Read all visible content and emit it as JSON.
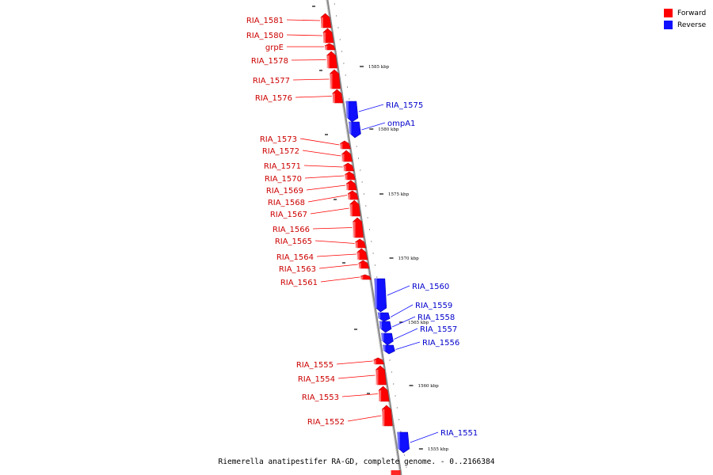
{
  "legend": {
    "forward": {
      "label": "Forward",
      "color": "#ff0000"
    },
    "reverse": {
      "label": "Reverse",
      "color": "#1010ff"
    }
  },
  "caption": "Riemerella anatipestifer RA-GD, complete genome. - 0..2166384",
  "ticks": [
    "1585 kbp",
    "1580 kbp",
    "1575 kbp",
    "1570 kbp",
    "1565 kbp",
    "1560 kbp",
    "1555 kbp"
  ],
  "genes": [
    {
      "name": "RIA_1581",
      "strand": "forward"
    },
    {
      "name": "RIA_1580",
      "strand": "forward"
    },
    {
      "name": "grpE",
      "strand": "forward"
    },
    {
      "name": "RIA_1578",
      "strand": "forward"
    },
    {
      "name": "RIA_1577",
      "strand": "forward"
    },
    {
      "name": "RIA_1576",
      "strand": "forward"
    },
    {
      "name": "RIA_1575",
      "strand": "reverse"
    },
    {
      "name": "ompA1",
      "strand": "reverse"
    },
    {
      "name": "RIA_1573",
      "strand": "forward"
    },
    {
      "name": "RIA_1572",
      "strand": "forward"
    },
    {
      "name": "RIA_1571",
      "strand": "forward"
    },
    {
      "name": "RIA_1570",
      "strand": "forward"
    },
    {
      "name": "RIA_1569",
      "strand": "forward"
    },
    {
      "name": "RIA_1568",
      "strand": "forward"
    },
    {
      "name": "RIA_1567",
      "strand": "forward"
    },
    {
      "name": "RIA_1566",
      "strand": "forward"
    },
    {
      "name": "RIA_1565",
      "strand": "forward"
    },
    {
      "name": "RIA_1564",
      "strand": "forward"
    },
    {
      "name": "RIA_1563",
      "strand": "forward"
    },
    {
      "name": "RIA_1561",
      "strand": "forward"
    },
    {
      "name": "RIA_1560",
      "strand": "reverse"
    },
    {
      "name": "RIA_1559",
      "strand": "reverse"
    },
    {
      "name": "RIA_1558",
      "strand": "reverse"
    },
    {
      "name": "RIA_1557",
      "strand": "reverse"
    },
    {
      "name": "RIA_1556",
      "strand": "reverse"
    },
    {
      "name": "RIA_1555",
      "strand": "forward"
    },
    {
      "name": "RIA_1554",
      "strand": "forward"
    },
    {
      "name": "RIA_1553",
      "strand": "forward"
    },
    {
      "name": "RIA_1552",
      "strand": "forward"
    },
    {
      "name": "RIA_1551",
      "strand": "reverse"
    }
  ]
}
